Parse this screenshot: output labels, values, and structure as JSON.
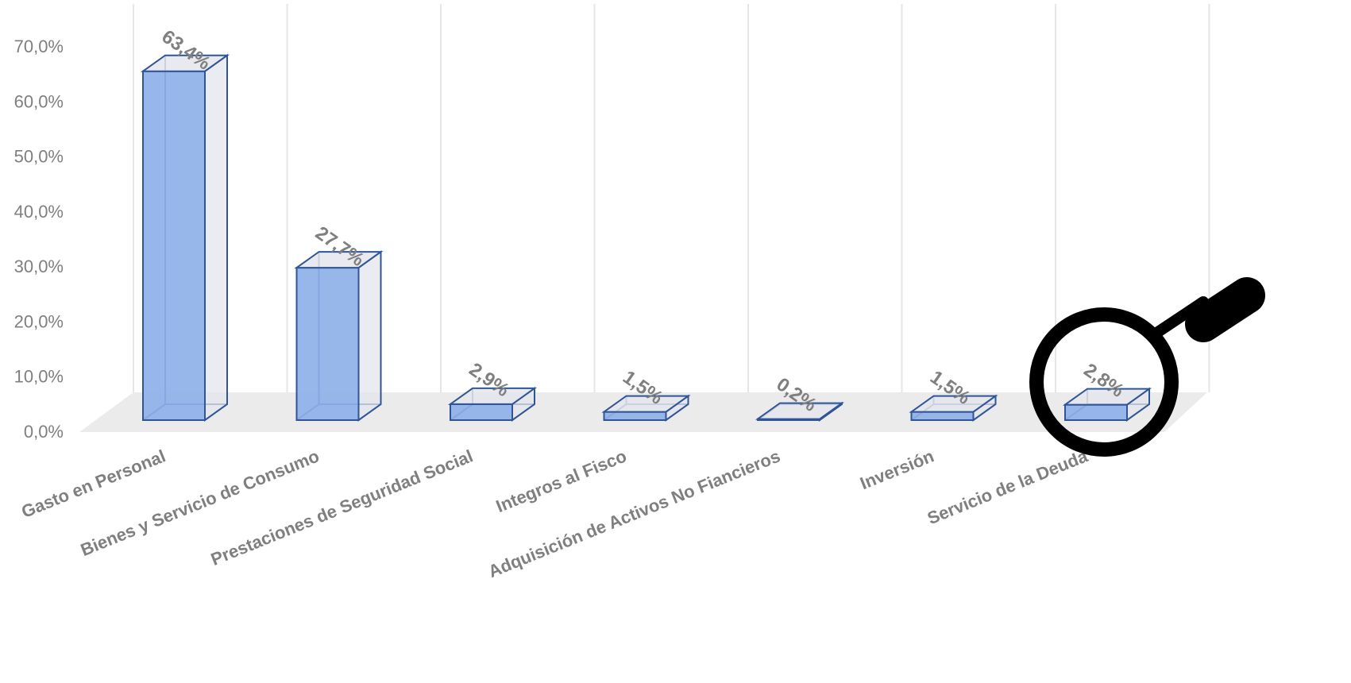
{
  "chart_data": {
    "type": "bar",
    "categories": [
      "Gasto en Personal",
      "Bienes y Servicio de Consumo",
      "Prestaciones de Seguridad Social",
      "Integros al Fisco",
      "Adquisición de Activos No Fiancieros",
      "Inversión",
      "Servicio de la Deuda"
    ],
    "values": [
      63.4,
      27.7,
      2.9,
      1.5,
      0.2,
      1.5,
      2.8
    ],
    "value_labels": [
      "63,4%",
      "27,7%",
      "2,9%",
      "1,5%",
      "0,2%",
      "1,5%",
      "2,8%"
    ],
    "yticks": [
      "0,0%",
      "10,0%",
      "20,0%",
      "30,0%",
      "40,0%",
      "50,0%",
      "60,0%",
      "70,0%"
    ],
    "ylim": [
      0,
      70
    ],
    "title": "",
    "xlabel": "",
    "ylabel": "",
    "style": "3d-column",
    "grid": true,
    "legend": "none",
    "colors": {
      "bar_fill": "#8eb0e8",
      "bar_stroke": "#2f5597",
      "side_fill": "#e4e6ec",
      "floor": "#ebebeb",
      "grid": "#e6e6e6",
      "text": "#7f7f7f",
      "magnifier": "#000000"
    }
  },
  "overlay": {
    "icon": "magnifier-icon"
  }
}
